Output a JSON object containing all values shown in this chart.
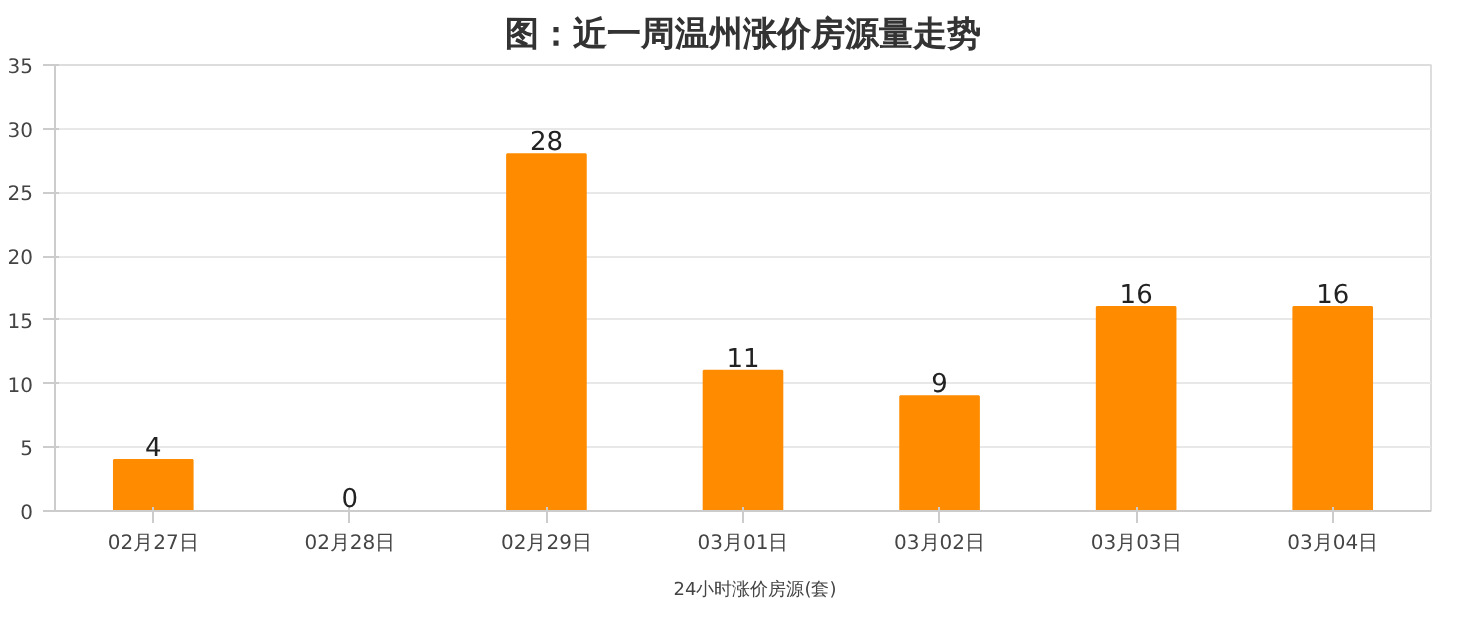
{
  "chart_data": {
    "type": "bar",
    "title": "图：近一周温州涨价房源量走势",
    "categories": [
      "02月27日",
      "02月28日",
      "02月29日",
      "03月01日",
      "03月02日",
      "03月03日",
      "03月04日"
    ],
    "series": [
      {
        "name": "24小时涨价房源(套)",
        "color": "#ff8c00",
        "values": [
          4,
          0,
          28,
          11,
          9,
          16,
          16
        ]
      }
    ],
    "ylim": [
      0,
      35
    ],
    "yticks": [
      0,
      5,
      10,
      15,
      20,
      25,
      30,
      35
    ],
    "grid": "y",
    "legend": "bottom",
    "data_labels": true
  }
}
